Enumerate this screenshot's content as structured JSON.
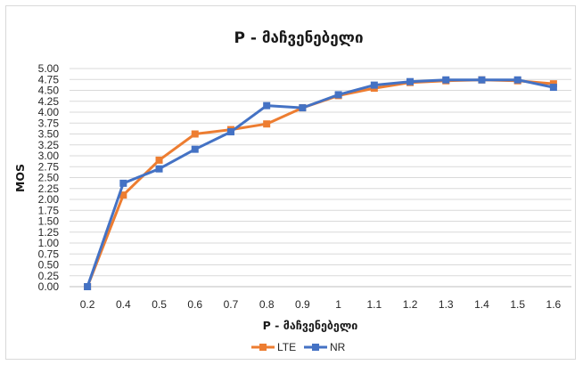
{
  "chart_data": {
    "type": "line",
    "title": "P - მაჩვენებელი",
    "xlabel": "P - მაჩვენებელი",
    "ylabel": "MOS",
    "categories": [
      "0.2",
      "0.4",
      "0.5",
      "0.6",
      "0.7",
      "0.8",
      "0.9",
      "1",
      "1.1",
      "1.2",
      "1.3",
      "1.4",
      "1.5",
      "1.6"
    ],
    "ylim": [
      0,
      5
    ],
    "yticks": [
      "0.00",
      "0.25",
      "0.50",
      "0.75",
      "1.00",
      "1.25",
      "1.50",
      "1.75",
      "2.00",
      "2.25",
      "2.50",
      "2.75",
      "3.00",
      "3.25",
      "3.50",
      "3.75",
      "4.00",
      "4.25",
      "4.50",
      "4.75",
      "5.00"
    ],
    "grid": true,
    "legend_position": "bottom",
    "series": [
      {
        "name": "LTE",
        "color": "#ED7D31",
        "values": [
          0.0,
          2.1,
          2.9,
          3.5,
          3.6,
          3.73,
          4.1,
          4.38,
          4.55,
          4.68,
          4.72,
          4.74,
          4.72,
          4.65
        ]
      },
      {
        "name": "NR",
        "color": "#4472C4",
        "values": [
          0.0,
          2.37,
          2.7,
          3.15,
          3.55,
          4.15,
          4.1,
          4.4,
          4.62,
          4.7,
          4.74,
          4.74,
          4.74,
          4.57
        ]
      }
    ]
  }
}
